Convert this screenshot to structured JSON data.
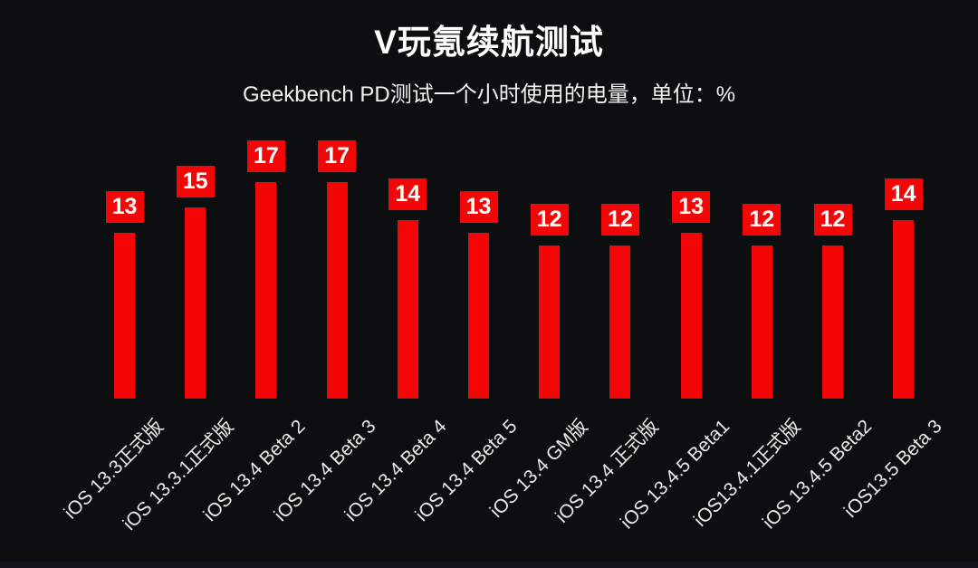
{
  "title": "V玩氪续航测试",
  "subtitle": "Geekbench PD测试一个小时使用的电量，单位：%",
  "colors": {
    "background": "#0d0e10",
    "bar": "#f40606",
    "value_text": "#ffffff",
    "title_text": "#ffffff",
    "axis_label_text": "#e9e9e9"
  },
  "chart_data": {
    "type": "bar",
    "title": "V玩氪续航测试",
    "subtitle": "Geekbench PD测试一个小时使用的电量，单位：%",
    "unit": "%",
    "categories": [
      "iOS 13.3正式版",
      "iOS 13.3.1正式版",
      "iOS 13.4 Beta 2",
      "iOS 13.4 Beta 3",
      "iOS 13.4 Beta 4",
      "iOS 13.4 Beta 5",
      "iOS 13.4 GM版",
      "iOS 13.4 正式版",
      "iOS 13.4.5 Beta1",
      "iOS13.4.1正式版",
      "iOS 13.4.5 Beta2",
      "iOS13.5 Beta 3"
    ],
    "values": [
      13,
      15,
      17,
      17,
      14,
      13,
      12,
      12,
      13,
      12,
      12,
      14
    ],
    "xlabel": "",
    "ylabel": "",
    "ylim": [
      0,
      18
    ],
    "grid": false,
    "legend": false,
    "value_labels": true,
    "x_tick_rotation_deg": 45
  }
}
